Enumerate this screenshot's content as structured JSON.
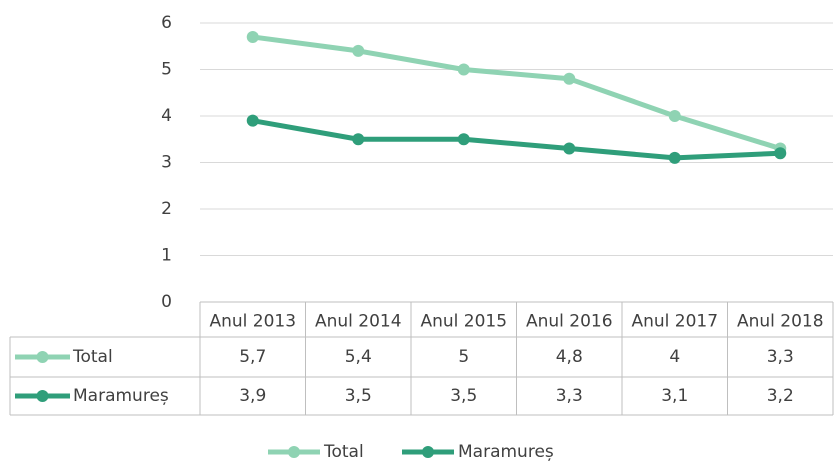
{
  "chart_data": {
    "type": "line",
    "categories": [
      "Anul 2013",
      "Anul 2014",
      "Anul 2015",
      "Anul 2016",
      "Anul 2017",
      "Anul 2018"
    ],
    "series": [
      {
        "name": "Total",
        "color": "#8fd3b3",
        "values": [
          5.7,
          5.4,
          5,
          4.8,
          4,
          3.3
        ],
        "value_labels": [
          "5,7",
          "5,4",
          "5",
          "4,8",
          "4",
          "3,3"
        ]
      },
      {
        "name": "Maramureș",
        "color": "#2f9e7a",
        "values": [
          3.9,
          3.5,
          3.5,
          3.3,
          3.1,
          3.2
        ],
        "value_labels": [
          "3,9",
          "3,5",
          "3,5",
          "3,3",
          "3,1",
          "3,2"
        ]
      }
    ],
    "ylim": [
      0,
      6
    ],
    "yticks": [
      0,
      1,
      2,
      3,
      4,
      5,
      6
    ],
    "grid": true,
    "legend": "bottom"
  }
}
